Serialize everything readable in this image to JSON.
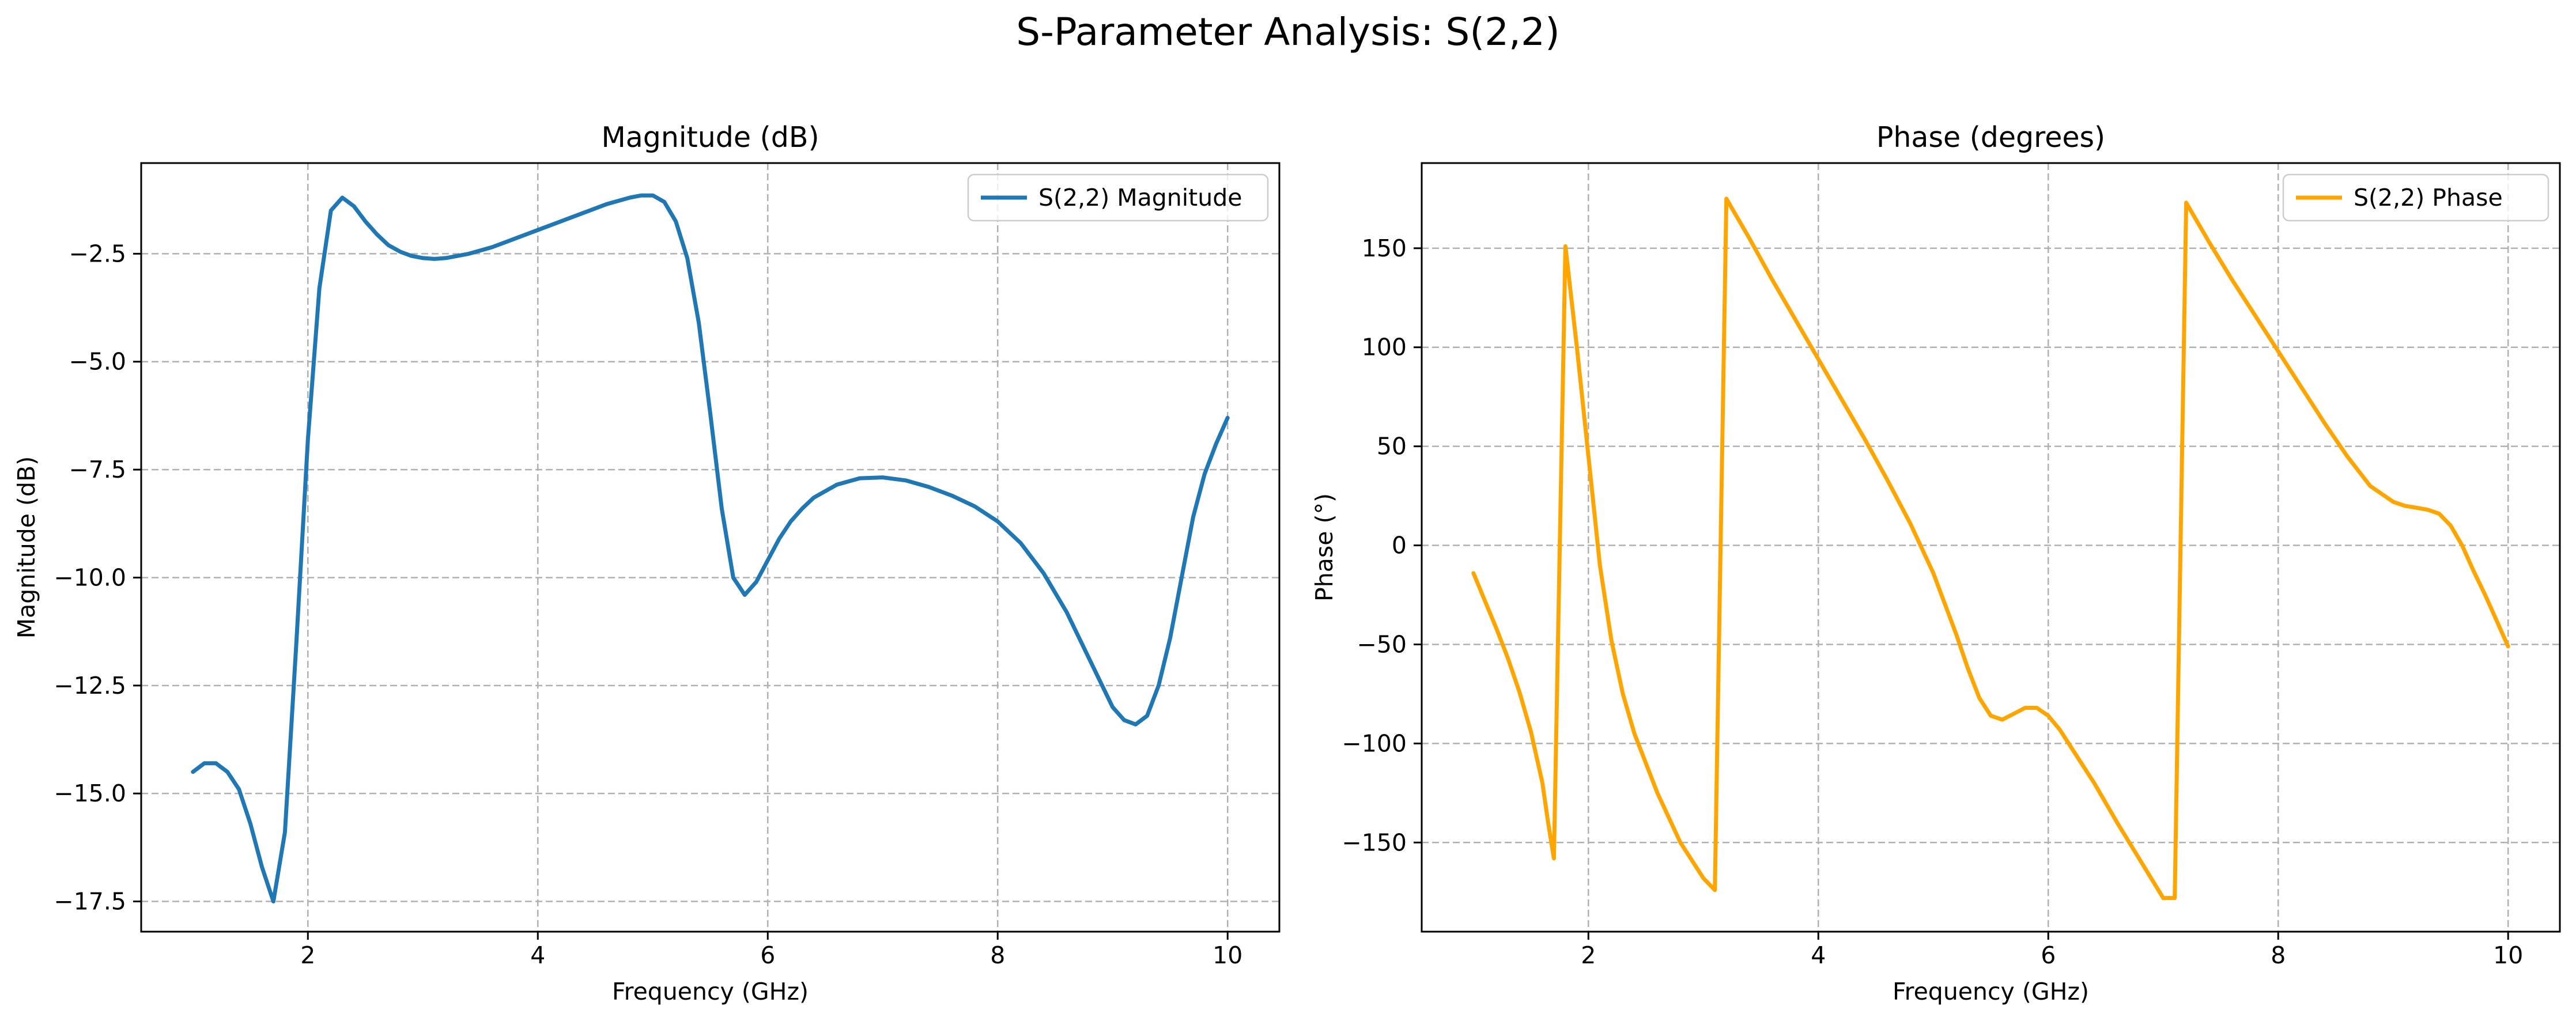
{
  "figure": {
    "suptitle": "S-Parameter Analysis: S(2,2)"
  },
  "colors": {
    "magnitude": "#1f77b4",
    "phase": "#ffa500",
    "grid": "#b0b0b0",
    "axes": "#000000",
    "background": "#ffffff"
  },
  "chart_data": [
    {
      "type": "line",
      "title": "Magnitude (dB)",
      "xlabel": "Frequency (GHz)",
      "ylabel": "Magnitude (dB)",
      "xlim": [
        0.55,
        10.45
      ],
      "ylim": [
        -18.2,
        -0.4
      ],
      "xticks": [
        2,
        4,
        6,
        8,
        10
      ],
      "yticks": [
        -17.5,
        -15.0,
        -12.5,
        -10.0,
        -7.5,
        -5.0,
        -2.5
      ],
      "ytick_labels": [
        "−17.5",
        "−15.0",
        "−12.5",
        "−10.0",
        "−7.5",
        "−5.0",
        "−2.5"
      ],
      "grid": true,
      "grid_style": "dashed",
      "legend_position": "top-right",
      "series": [
        {
          "name": "S(2,2) Magnitude",
          "x": [
            1.0,
            1.1,
            1.2,
            1.3,
            1.4,
            1.5,
            1.6,
            1.7,
            1.8,
            1.9,
            2.0,
            2.1,
            2.2,
            2.3,
            2.4,
            2.5,
            2.6,
            2.7,
            2.8,
            2.9,
            3.0,
            3.1,
            3.2,
            3.4,
            3.6,
            3.8,
            4.0,
            4.2,
            4.4,
            4.6,
            4.8,
            4.9,
            5.0,
            5.1,
            5.2,
            5.3,
            5.4,
            5.5,
            5.6,
            5.7,
            5.8,
            5.9,
            6.0,
            6.1,
            6.2,
            6.3,
            6.4,
            6.6,
            6.8,
            7.0,
            7.2,
            7.4,
            7.6,
            7.8,
            8.0,
            8.2,
            8.4,
            8.6,
            8.8,
            9.0,
            9.1,
            9.2,
            9.3,
            9.4,
            9.5,
            9.6,
            9.7,
            9.8,
            9.9,
            10.0
          ],
          "y": [
            -14.5,
            -14.3,
            -14.3,
            -14.5,
            -14.9,
            -15.7,
            -16.7,
            -17.5,
            -15.9,
            -11.5,
            -6.8,
            -3.3,
            -1.5,
            -1.2,
            -1.4,
            -1.75,
            -2.05,
            -2.3,
            -2.45,
            -2.55,
            -2.6,
            -2.62,
            -2.6,
            -2.5,
            -2.35,
            -2.15,
            -1.95,
            -1.75,
            -1.55,
            -1.35,
            -1.2,
            -1.15,
            -1.15,
            -1.3,
            -1.75,
            -2.6,
            -4.1,
            -6.2,
            -8.4,
            -10.0,
            -10.4,
            -10.1,
            -9.6,
            -9.1,
            -8.7,
            -8.4,
            -8.15,
            -7.85,
            -7.7,
            -7.68,
            -7.75,
            -7.9,
            -8.1,
            -8.35,
            -8.7,
            -9.2,
            -9.9,
            -10.8,
            -11.9,
            -13.0,
            -13.3,
            -13.4,
            -13.2,
            -12.5,
            -11.4,
            -10.0,
            -8.6,
            -7.6,
            -6.9,
            -6.3
          ]
        }
      ]
    },
    {
      "type": "line",
      "title": "Phase (degrees)",
      "xlabel": "Frequency (GHz)",
      "ylabel": "Phase (°)",
      "xlim": [
        0.55,
        10.45
      ],
      "ylim": [
        -195,
        193
      ],
      "xticks": [
        2,
        4,
        6,
        8,
        10
      ],
      "yticks": [
        -150,
        -100,
        -50,
        0,
        50,
        100,
        150
      ],
      "ytick_labels": [
        "−150",
        "−100",
        "−50",
        "0",
        "50",
        "100",
        "150"
      ],
      "grid": true,
      "grid_style": "dashed",
      "legend_position": "top-right",
      "series": [
        {
          "name": "S(2,2) Phase",
          "x": [
            1.0,
            1.1,
            1.2,
            1.3,
            1.4,
            1.5,
            1.6,
            1.65,
            1.7,
            1.8,
            1.9,
            2.0,
            2.1,
            2.2,
            2.3,
            2.4,
            2.6,
            2.8,
            3.0,
            3.1,
            3.2,
            3.4,
            3.6,
            3.8,
            4.0,
            4.2,
            4.4,
            4.6,
            4.8,
            5.0,
            5.2,
            5.3,
            5.4,
            5.5,
            5.6,
            5.7,
            5.8,
            5.9,
            6.0,
            6.1,
            6.2,
            6.4,
            6.6,
            6.8,
            7.0,
            7.1,
            7.2,
            7.4,
            7.6,
            7.8,
            8.0,
            8.2,
            8.4,
            8.6,
            8.8,
            9.0,
            9.1,
            9.2,
            9.3,
            9.4,
            9.5,
            9.6,
            9.7,
            9.8,
            9.9,
            10.0
          ],
          "y": [
            -14,
            -28,
            -42,
            -57,
            -74,
            -94,
            -120,
            -140,
            -158,
            151,
            100,
            45,
            -10,
            -48,
            -75,
            -95,
            -125,
            -150,
            -168,
            -174,
            175,
            155,
            134,
            114,
            94,
            74,
            54,
            33,
            11,
            -14,
            -45,
            -62,
            -77,
            -86,
            -88,
            -85,
            -82,
            -82,
            -86,
            -93,
            -102,
            -120,
            -140,
            -159,
            -178,
            -178,
            173,
            153,
            134,
            116,
            98,
            80,
            62,
            45,
            30,
            22,
            20,
            19,
            18,
            16,
            10,
            0,
            -13,
            -25,
            -38,
            -51
          ]
        }
      ]
    }
  ]
}
